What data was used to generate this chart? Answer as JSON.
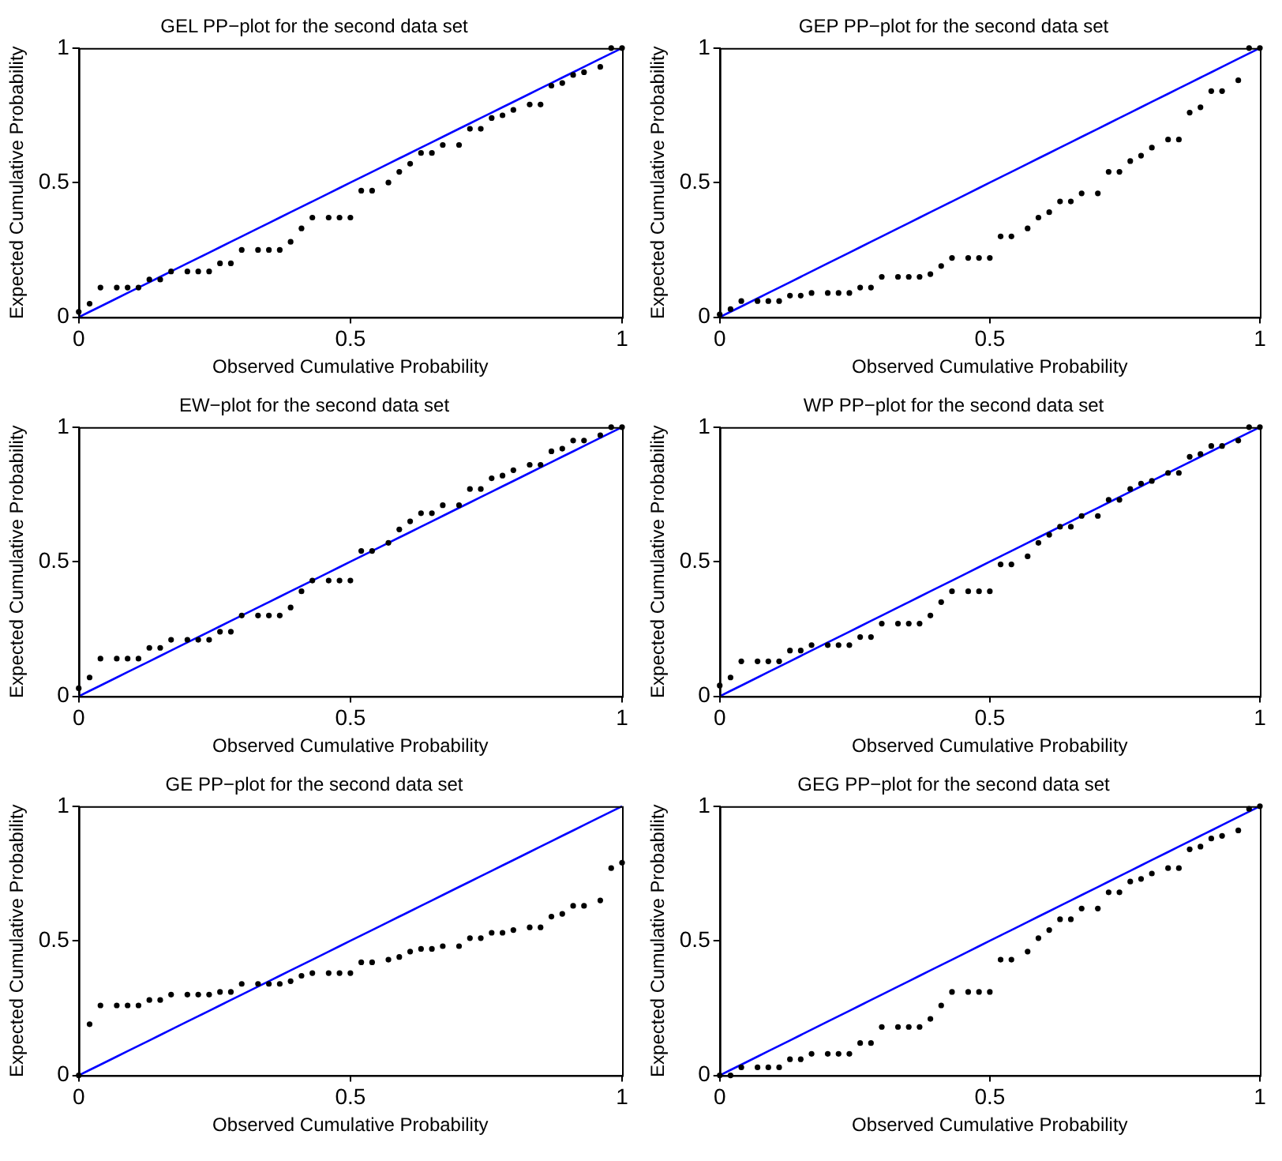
{
  "chart_data": [
    {
      "type": "scatter",
      "title": "GEL PP−plot for the second data set",
      "xlabel": "Observed Cumulative Probability",
      "ylabel": "Expected Cumulative Probability",
      "xlim": [
        0,
        1
      ],
      "ylim": [
        0,
        1
      ],
      "xticks": [
        0,
        0.5,
        1
      ],
      "yticks": [
        0,
        0.5,
        1
      ],
      "x": [
        0,
        0.02,
        0.04,
        0.07,
        0.09,
        0.11,
        0.13,
        0.15,
        0.17,
        0.2,
        0.22,
        0.24,
        0.26,
        0.28,
        0.3,
        0.33,
        0.35,
        0.37,
        0.39,
        0.41,
        0.43,
        0.46,
        0.48,
        0.5,
        0.52,
        0.54,
        0.57,
        0.59,
        0.61,
        0.63,
        0.65,
        0.67,
        0.7,
        0.72,
        0.74,
        0.76,
        0.78,
        0.8,
        0.83,
        0.85,
        0.87,
        0.89,
        0.91,
        0.93,
        0.96,
        0.98,
        1.0
      ],
      "series": [
        {
          "type": "scatter",
          "marker": "circle",
          "color": "#000000",
          "values": [
            0.02,
            0.05,
            0.11,
            0.11,
            0.11,
            0.11,
            0.14,
            0.14,
            0.17,
            0.17,
            0.17,
            0.17,
            0.2,
            0.2,
            0.25,
            0.25,
            0.25,
            0.25,
            0.28,
            0.33,
            0.37,
            0.37,
            0.37,
            0.37,
            0.47,
            0.47,
            0.5,
            0.54,
            0.57,
            0.61,
            0.61,
            0.64,
            0.64,
            0.7,
            0.7,
            0.74,
            0.75,
            0.77,
            0.79,
            0.79,
            0.86,
            0.87,
            0.9,
            0.91,
            0.93,
            1.0,
            1.0
          ]
        },
        {
          "type": "line",
          "marker": "none",
          "color": "#0000ff",
          "values": [
            0,
            0.02,
            0.04,
            0.07,
            0.09,
            0.11,
            0.13,
            0.15,
            0.17,
            0.2,
            0.22,
            0.24,
            0.26,
            0.28,
            0.3,
            0.33,
            0.35,
            0.37,
            0.39,
            0.41,
            0.43,
            0.46,
            0.48,
            0.5,
            0.52,
            0.54,
            0.57,
            0.59,
            0.61,
            0.63,
            0.65,
            0.67,
            0.7,
            0.72,
            0.74,
            0.76,
            0.78,
            0.8,
            0.83,
            0.85,
            0.87,
            0.89,
            0.91,
            0.93,
            0.96,
            0.98,
            1.0
          ]
        }
      ]
    },
    {
      "type": "scatter",
      "title": "GEP PP−plot for the second data set",
      "xlabel": "Observed Cumulative Probability",
      "ylabel": "Expected Cumulative Probability",
      "xlim": [
        0,
        1
      ],
      "ylim": [
        0,
        1
      ],
      "xticks": [
        0,
        0.5,
        1
      ],
      "yticks": [
        0,
        0.5,
        1
      ],
      "x": [
        0,
        0.02,
        0.04,
        0.07,
        0.09,
        0.11,
        0.13,
        0.15,
        0.17,
        0.2,
        0.22,
        0.24,
        0.26,
        0.28,
        0.3,
        0.33,
        0.35,
        0.37,
        0.39,
        0.41,
        0.43,
        0.46,
        0.48,
        0.5,
        0.52,
        0.54,
        0.57,
        0.59,
        0.61,
        0.63,
        0.65,
        0.67,
        0.7,
        0.72,
        0.74,
        0.76,
        0.78,
        0.8,
        0.83,
        0.85,
        0.87,
        0.89,
        0.91,
        0.93,
        0.96,
        0.98,
        1.0
      ],
      "series": [
        {
          "type": "scatter",
          "marker": "circle",
          "color": "#000000",
          "values": [
            0.01,
            0.03,
            0.06,
            0.06,
            0.06,
            0.06,
            0.08,
            0.08,
            0.09,
            0.09,
            0.09,
            0.09,
            0.11,
            0.11,
            0.15,
            0.15,
            0.15,
            0.15,
            0.16,
            0.19,
            0.22,
            0.22,
            0.22,
            0.22,
            0.3,
            0.3,
            0.33,
            0.37,
            0.39,
            0.43,
            0.43,
            0.46,
            0.46,
            0.54,
            0.54,
            0.58,
            0.6,
            0.63,
            0.66,
            0.66,
            0.76,
            0.78,
            0.84,
            0.84,
            0.88,
            1.0,
            1.0
          ]
        },
        {
          "type": "line",
          "marker": "none",
          "color": "#0000ff",
          "values": [
            0,
            0.02,
            0.04,
            0.07,
            0.09,
            0.11,
            0.13,
            0.15,
            0.17,
            0.2,
            0.22,
            0.24,
            0.26,
            0.28,
            0.3,
            0.33,
            0.35,
            0.37,
            0.39,
            0.41,
            0.43,
            0.46,
            0.48,
            0.5,
            0.52,
            0.54,
            0.57,
            0.59,
            0.61,
            0.63,
            0.65,
            0.67,
            0.7,
            0.72,
            0.74,
            0.76,
            0.78,
            0.8,
            0.83,
            0.85,
            0.87,
            0.89,
            0.91,
            0.93,
            0.96,
            0.98,
            1.0
          ]
        }
      ]
    },
    {
      "type": "scatter",
      "title": "EW−plot for the second data set",
      "xlabel": "Observed Cumulative Probability",
      "ylabel": "Expected Cumulative Probability",
      "xlim": [
        0,
        1
      ],
      "ylim": [
        0,
        1
      ],
      "xticks": [
        0,
        0.5,
        1
      ],
      "yticks": [
        0,
        0.5,
        1
      ],
      "x": [
        0,
        0.02,
        0.04,
        0.07,
        0.09,
        0.11,
        0.13,
        0.15,
        0.17,
        0.2,
        0.22,
        0.24,
        0.26,
        0.28,
        0.3,
        0.33,
        0.35,
        0.37,
        0.39,
        0.41,
        0.43,
        0.46,
        0.48,
        0.5,
        0.52,
        0.54,
        0.57,
        0.59,
        0.61,
        0.63,
        0.65,
        0.67,
        0.7,
        0.72,
        0.74,
        0.76,
        0.78,
        0.8,
        0.83,
        0.85,
        0.87,
        0.89,
        0.91,
        0.93,
        0.96,
        0.98,
        1.0
      ],
      "series": [
        {
          "type": "scatter",
          "marker": "circle",
          "color": "#000000",
          "values": [
            0.03,
            0.07,
            0.14,
            0.14,
            0.14,
            0.14,
            0.18,
            0.18,
            0.21,
            0.21,
            0.21,
            0.21,
            0.24,
            0.24,
            0.3,
            0.3,
            0.3,
            0.3,
            0.33,
            0.39,
            0.43,
            0.43,
            0.43,
            0.43,
            0.54,
            0.54,
            0.57,
            0.62,
            0.65,
            0.68,
            0.68,
            0.71,
            0.71,
            0.77,
            0.77,
            0.81,
            0.82,
            0.84,
            0.86,
            0.86,
            0.91,
            0.92,
            0.95,
            0.95,
            0.97,
            1.0,
            1.0
          ]
        },
        {
          "type": "line",
          "marker": "none",
          "color": "#0000ff",
          "values": [
            0,
            0.02,
            0.04,
            0.07,
            0.09,
            0.11,
            0.13,
            0.15,
            0.17,
            0.2,
            0.22,
            0.24,
            0.26,
            0.28,
            0.3,
            0.33,
            0.35,
            0.37,
            0.39,
            0.41,
            0.43,
            0.46,
            0.48,
            0.5,
            0.52,
            0.54,
            0.57,
            0.59,
            0.61,
            0.63,
            0.65,
            0.67,
            0.7,
            0.72,
            0.74,
            0.76,
            0.78,
            0.8,
            0.83,
            0.85,
            0.87,
            0.89,
            0.91,
            0.93,
            0.96,
            0.98,
            1.0
          ]
        }
      ]
    },
    {
      "type": "scatter",
      "title": "WP PP−plot for the second data set",
      "xlabel": "Observed Cumulative Probability",
      "ylabel": "Expected Cumulative Probability",
      "xlim": [
        0,
        1
      ],
      "ylim": [
        0,
        1
      ],
      "xticks": [
        0,
        0.5,
        1
      ],
      "yticks": [
        0,
        0.5,
        1
      ],
      "x": [
        0,
        0.02,
        0.04,
        0.07,
        0.09,
        0.11,
        0.13,
        0.15,
        0.17,
        0.2,
        0.22,
        0.24,
        0.26,
        0.28,
        0.3,
        0.33,
        0.35,
        0.37,
        0.39,
        0.41,
        0.43,
        0.46,
        0.48,
        0.5,
        0.52,
        0.54,
        0.57,
        0.59,
        0.61,
        0.63,
        0.65,
        0.67,
        0.7,
        0.72,
        0.74,
        0.76,
        0.78,
        0.8,
        0.83,
        0.85,
        0.87,
        0.89,
        0.91,
        0.93,
        0.96,
        0.98,
        1.0
      ],
      "series": [
        {
          "type": "scatter",
          "marker": "circle",
          "color": "#000000",
          "values": [
            0.04,
            0.07,
            0.13,
            0.13,
            0.13,
            0.13,
            0.17,
            0.17,
            0.19,
            0.19,
            0.19,
            0.19,
            0.22,
            0.22,
            0.27,
            0.27,
            0.27,
            0.27,
            0.3,
            0.35,
            0.39,
            0.39,
            0.39,
            0.39,
            0.49,
            0.49,
            0.52,
            0.57,
            0.6,
            0.63,
            0.63,
            0.67,
            0.67,
            0.73,
            0.73,
            0.77,
            0.79,
            0.8,
            0.83,
            0.83,
            0.89,
            0.9,
            0.93,
            0.93,
            0.95,
            1.0,
            1.0
          ]
        },
        {
          "type": "line",
          "marker": "none",
          "color": "#0000ff",
          "values": [
            0,
            0.02,
            0.04,
            0.07,
            0.09,
            0.11,
            0.13,
            0.15,
            0.17,
            0.2,
            0.22,
            0.24,
            0.26,
            0.28,
            0.3,
            0.33,
            0.35,
            0.37,
            0.39,
            0.41,
            0.43,
            0.46,
            0.48,
            0.5,
            0.52,
            0.54,
            0.57,
            0.59,
            0.61,
            0.63,
            0.65,
            0.67,
            0.7,
            0.72,
            0.74,
            0.76,
            0.78,
            0.8,
            0.83,
            0.85,
            0.87,
            0.89,
            0.91,
            0.93,
            0.96,
            0.98,
            1.0
          ]
        }
      ]
    },
    {
      "type": "scatter",
      "title": "GE PP−plot for the second data set",
      "xlabel": "Observed Cumulative Probability",
      "ylabel": "Expected Cumulative Probability",
      "xlim": [
        0,
        1
      ],
      "ylim": [
        0,
        1
      ],
      "xticks": [
        0,
        0.5,
        1
      ],
      "yticks": [
        0,
        0.5,
        1
      ],
      "x": [
        0,
        0.02,
        0.04,
        0.07,
        0.09,
        0.11,
        0.13,
        0.15,
        0.17,
        0.2,
        0.22,
        0.24,
        0.26,
        0.28,
        0.3,
        0.33,
        0.35,
        0.37,
        0.39,
        0.41,
        0.43,
        0.46,
        0.48,
        0.5,
        0.52,
        0.54,
        0.57,
        0.59,
        0.61,
        0.63,
        0.65,
        0.67,
        0.7,
        0.72,
        0.74,
        0.76,
        0.78,
        0.8,
        0.83,
        0.85,
        0.87,
        0.89,
        0.91,
        0.93,
        0.96,
        0.98,
        1.0
      ],
      "series": [
        {
          "type": "scatter",
          "marker": "circle",
          "color": "#000000",
          "values": [
            0.0,
            0.19,
            0.26,
            0.26,
            0.26,
            0.26,
            0.28,
            0.28,
            0.3,
            0.3,
            0.3,
            0.3,
            0.31,
            0.31,
            0.34,
            0.34,
            0.34,
            0.34,
            0.35,
            0.37,
            0.38,
            0.38,
            0.38,
            0.38,
            0.42,
            0.42,
            0.43,
            0.44,
            0.46,
            0.47,
            0.47,
            0.48,
            0.48,
            0.51,
            0.51,
            0.53,
            0.53,
            0.54,
            0.55,
            0.55,
            0.59,
            0.6,
            0.63,
            0.63,
            0.65,
            0.77,
            0.79
          ]
        },
        {
          "type": "line",
          "marker": "none",
          "color": "#0000ff",
          "values": [
            0,
            0.02,
            0.04,
            0.07,
            0.09,
            0.11,
            0.13,
            0.15,
            0.17,
            0.2,
            0.22,
            0.24,
            0.26,
            0.28,
            0.3,
            0.33,
            0.35,
            0.37,
            0.39,
            0.41,
            0.43,
            0.46,
            0.48,
            0.5,
            0.52,
            0.54,
            0.57,
            0.59,
            0.61,
            0.63,
            0.65,
            0.67,
            0.7,
            0.72,
            0.74,
            0.76,
            0.78,
            0.8,
            0.83,
            0.85,
            0.87,
            0.89,
            0.91,
            0.93,
            0.96,
            0.98,
            1.0
          ]
        }
      ]
    },
    {
      "type": "scatter",
      "title": "GEG PP−plot for the second data set",
      "xlabel": "Observed Cumulative Probability",
      "ylabel": "Expected Cumulative Probability",
      "xlim": [
        0,
        1
      ],
      "ylim": [
        0,
        1
      ],
      "xticks": [
        0,
        0.5,
        1
      ],
      "yticks": [
        0,
        0.5,
        1
      ],
      "x": [
        0,
        0.02,
        0.04,
        0.07,
        0.09,
        0.11,
        0.13,
        0.15,
        0.17,
        0.2,
        0.22,
        0.24,
        0.26,
        0.28,
        0.3,
        0.33,
        0.35,
        0.37,
        0.39,
        0.41,
        0.43,
        0.46,
        0.48,
        0.5,
        0.52,
        0.54,
        0.57,
        0.59,
        0.61,
        0.63,
        0.65,
        0.67,
        0.7,
        0.72,
        0.74,
        0.76,
        0.78,
        0.8,
        0.83,
        0.85,
        0.87,
        0.89,
        0.91,
        0.93,
        0.96,
        0.98,
        1.0
      ],
      "series": [
        {
          "type": "scatter",
          "marker": "circle",
          "color": "#000000",
          "values": [
            0.0,
            0.0,
            0.03,
            0.03,
            0.03,
            0.03,
            0.06,
            0.06,
            0.08,
            0.08,
            0.08,
            0.08,
            0.12,
            0.12,
            0.18,
            0.18,
            0.18,
            0.18,
            0.21,
            0.26,
            0.31,
            0.31,
            0.31,
            0.31,
            0.43,
            0.43,
            0.46,
            0.51,
            0.54,
            0.58,
            0.58,
            0.62,
            0.62,
            0.68,
            0.68,
            0.72,
            0.73,
            0.75,
            0.77,
            0.77,
            0.84,
            0.85,
            0.88,
            0.89,
            0.91,
            0.99,
            1.0
          ]
        },
        {
          "type": "line",
          "marker": "none",
          "color": "#0000ff",
          "values": [
            0,
            0.02,
            0.04,
            0.07,
            0.09,
            0.11,
            0.13,
            0.15,
            0.17,
            0.2,
            0.22,
            0.24,
            0.26,
            0.28,
            0.3,
            0.33,
            0.35,
            0.37,
            0.39,
            0.41,
            0.43,
            0.46,
            0.48,
            0.5,
            0.52,
            0.54,
            0.57,
            0.59,
            0.61,
            0.63,
            0.65,
            0.67,
            0.7,
            0.72,
            0.74,
            0.76,
            0.78,
            0.8,
            0.83,
            0.85,
            0.87,
            0.89,
            0.91,
            0.93,
            0.96,
            0.98,
            1.0
          ]
        }
      ]
    }
  ]
}
